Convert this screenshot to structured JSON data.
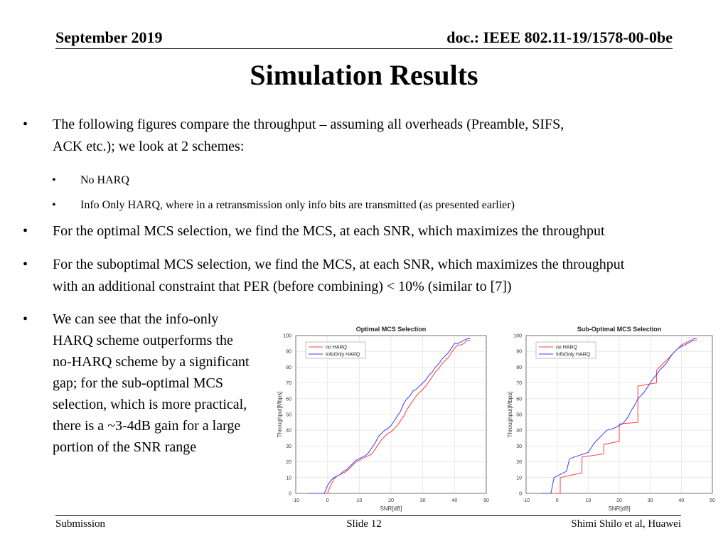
{
  "header": {
    "date": "September 2019",
    "doc": "doc.: IEEE 802.11-19/1578-00-0be"
  },
  "title": "Simulation Results",
  "bullets": {
    "b1_line1": "The following figures compare the throughput – assuming all overheads (Preamble, SIFS,",
    "b1_line2": "ACK etc.); we look at 2 schemes:",
    "sub1": "No HARQ",
    "sub2": "Info Only HARQ, where in a retransmission only info bits are transmitted (as presented earlier)",
    "b2": "For the optimal MCS selection, we find the MCS, at each SNR, which maximizes the throughput",
    "b3_line1": "For the suboptimal MCS selection, we find the MCS, at each SNR, which maximizes the throughput",
    "b3_line2": "with an additional constraint that PER (before combining) < 10% (similar to [7])",
    "b4_lines": [
      "We can see that the info-only",
      "HARQ scheme outperforms the",
      "no-HARQ scheme by a significant",
      "gap; for the sub-optimal MCS",
      "selection, which is more practical,",
      "there is a ~3-4dB gain for a large",
      "portion of the SNR range"
    ],
    "bullet_char": "•"
  },
  "footer": {
    "left": "Submission",
    "center": "Slide 12",
    "right": "Shimi Shilo et al, Huawei"
  },
  "colors": {
    "no_harq": "#ff3b3b",
    "info_only": "#3b3bff"
  },
  "chart_data": [
    {
      "type": "line",
      "title": "Optimal MCS Selection",
      "xlabel": "SNR[dB]",
      "ylabel": "Throughput[Mbps]",
      "xlim": [
        -10,
        50
      ],
      "ylim": [
        0,
        100
      ],
      "xticks": [
        -10,
        0,
        10,
        20,
        30,
        40,
        50
      ],
      "yticks": [
        0,
        10,
        20,
        30,
        40,
        50,
        60,
        70,
        80,
        90,
        100
      ],
      "grid": true,
      "legend_position": "top-left",
      "series": [
        {
          "name": "no HARQ",
          "color": "#ff3b3b",
          "x": [
            -6,
            0,
            1,
            2,
            3,
            4,
            5,
            6,
            7,
            8,
            9,
            10,
            11,
            12,
            13,
            14,
            15,
            16,
            17,
            18,
            19,
            20,
            21,
            22,
            23,
            24,
            25,
            26,
            27,
            28,
            29,
            30,
            31,
            32,
            33,
            34,
            35,
            36,
            37,
            38,
            39,
            40,
            41,
            42,
            43,
            44,
            45
          ],
          "y": [
            0,
            0,
            5,
            9,
            11,
            12,
            13,
            14,
            16,
            18,
            20,
            21,
            22,
            23,
            24,
            25,
            28,
            31,
            34,
            36,
            38,
            39,
            41,
            43,
            46,
            49,
            53,
            56,
            59,
            62,
            64,
            66,
            68,
            71,
            74,
            77,
            79,
            82,
            84,
            86,
            89,
            92,
            94,
            94,
            95,
            97,
            97
          ]
        },
        {
          "name": "InfoOnly HARQ",
          "color": "#3b3bff",
          "x": [
            -6,
            -1,
            0,
            1,
            2,
            3,
            4,
            5,
            6,
            7,
            8,
            9,
            10,
            11,
            12,
            13,
            14,
            15,
            16,
            17,
            18,
            19,
            20,
            21,
            22,
            23,
            24,
            25,
            26,
            27,
            28,
            29,
            30,
            31,
            32,
            33,
            34,
            35,
            36,
            37,
            38,
            39,
            40,
            41,
            42,
            43,
            44,
            45
          ],
          "y": [
            0,
            0,
            5,
            8,
            10,
            11,
            12,
            14,
            15,
            17,
            19,
            21,
            22,
            23,
            24,
            26,
            29,
            32,
            36,
            38,
            40,
            41,
            43,
            46,
            49,
            52,
            57,
            60,
            62,
            65,
            66,
            68,
            70,
            72,
            75,
            77,
            80,
            82,
            85,
            87,
            89,
            92,
            95,
            95,
            96,
            97,
            98,
            98
          ]
        }
      ]
    },
    {
      "type": "line",
      "title": "Sub-Optimal MCS Selection",
      "xlabel": "SNR[dB]",
      "ylabel": "Throughput[Mbps]",
      "xlim": [
        -10,
        50
      ],
      "ylim": [
        0,
        100
      ],
      "xticks": [
        -10,
        0,
        10,
        20,
        30,
        40,
        50
      ],
      "yticks": [
        0,
        10,
        20,
        30,
        40,
        50,
        60,
        70,
        80,
        90,
        100
      ],
      "grid": true,
      "legend_position": "top-left",
      "series": [
        {
          "name": "no HARQ",
          "color": "#ff3b3b",
          "x": [
            -5,
            1,
            1,
            8,
            8,
            15,
            15,
            20,
            20,
            26,
            26,
            32,
            32,
            33,
            34,
            35,
            36,
            37,
            38,
            39,
            40,
            41,
            42,
            43,
            44,
            45
          ],
          "y": [
            0,
            0,
            10,
            13,
            23,
            25,
            31,
            33,
            44,
            45,
            68,
            70,
            78,
            80,
            82,
            84,
            86,
            88,
            90,
            92,
            94,
            95,
            96,
            97,
            97,
            97
          ]
        },
        {
          "name": "InfoOnly HARQ",
          "color": "#3b3bff",
          "x": [
            -5,
            -2,
            -1,
            3,
            4,
            10,
            12,
            16,
            18,
            21,
            22,
            23,
            24,
            25,
            26,
            27,
            28,
            29,
            30,
            31,
            32,
            33,
            34,
            35,
            36,
            37,
            38,
            39,
            40,
            41,
            42,
            43,
            44,
            45
          ],
          "y": [
            0,
            0,
            10,
            14,
            22,
            26,
            32,
            40,
            41,
            44,
            46,
            49,
            53,
            56,
            60,
            62,
            64,
            67,
            70,
            73,
            75,
            78,
            80,
            82,
            85,
            88,
            90,
            92,
            93,
            94,
            95,
            96,
            98,
            98
          ]
        }
      ]
    }
  ]
}
